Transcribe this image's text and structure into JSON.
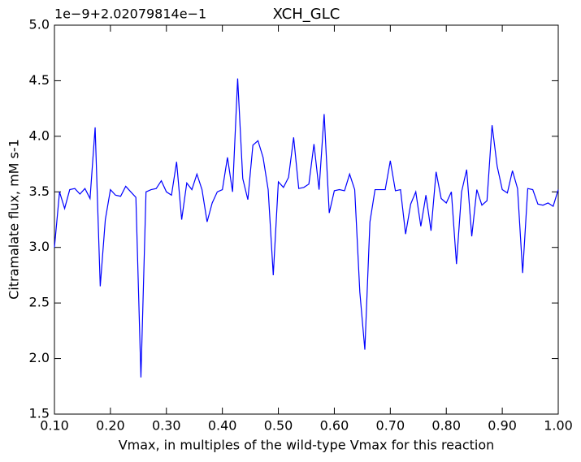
{
  "chart_data": {
    "type": "line",
    "title": "XCH_GLC",
    "offset_text": "1e−9+2.02079814e−1",
    "x_label": "Vmax, in multiples of the wild-type Vmax for this reaction",
    "y_label": "Citramalate flux, mM s-1",
    "x": [
      0.1,
      0.1091,
      0.1182,
      0.1273,
      0.1364,
      0.1455,
      0.1545,
      0.1636,
      0.1727,
      0.1818,
      0.1909,
      0.2,
      0.2091,
      0.2182,
      0.2273,
      0.2364,
      0.2455,
      0.2545,
      0.2636,
      0.2727,
      0.2818,
      0.2909,
      0.3,
      0.3091,
      0.3182,
      0.3273,
      0.3364,
      0.3455,
      0.3545,
      0.3636,
      0.3727,
      0.3818,
      0.3909,
      0.4,
      0.4091,
      0.4182,
      0.4273,
      0.4364,
      0.4455,
      0.4545,
      0.4636,
      0.4727,
      0.4818,
      0.4909,
      0.5,
      0.5091,
      0.5182,
      0.5273,
      0.5364,
      0.5455,
      0.5545,
      0.5636,
      0.5727,
      0.5818,
      0.5909,
      0.6,
      0.6091,
      0.6182,
      0.6273,
      0.6364,
      0.6455,
      0.6545,
      0.6636,
      0.6727,
      0.6818,
      0.6909,
      0.7,
      0.7091,
      0.7182,
      0.7273,
      0.7364,
      0.7455,
      0.7545,
      0.7636,
      0.7727,
      0.7818,
      0.7909,
      0.8,
      0.8091,
      0.8182,
      0.8273,
      0.8364,
      0.8455,
      0.8545,
      0.8636,
      0.8727,
      0.8818,
      0.8909,
      0.9,
      0.9091,
      0.9182,
      0.9273,
      0.9364,
      0.9455,
      0.9545,
      0.9636,
      0.9727,
      0.9818,
      0.9909,
      1.0
    ],
    "series": [
      {
        "name": "Citramalate flux",
        "color": "#0000ff",
        "values": [
          3.0,
          3.5,
          3.35,
          3.52,
          3.53,
          3.48,
          3.53,
          3.44,
          4.08,
          2.65,
          3.25,
          3.52,
          3.47,
          3.46,
          3.55,
          3.5,
          3.45,
          1.83,
          3.5,
          3.52,
          3.53,
          3.6,
          3.5,
          3.47,
          3.77,
          3.25,
          3.58,
          3.52,
          3.66,
          3.52,
          3.23,
          3.4,
          3.5,
          3.52,
          3.81,
          3.5,
          4.52,
          3.62,
          3.43,
          3.92,
          3.96,
          3.81,
          3.52,
          2.75,
          3.59,
          3.54,
          3.63,
          3.99,
          3.53,
          3.54,
          3.57,
          3.93,
          3.52,
          4.2,
          3.31,
          3.51,
          3.52,
          3.51,
          3.66,
          3.52,
          2.6,
          2.08,
          3.23,
          3.52,
          3.52,
          3.52,
          3.78,
          3.51,
          3.52,
          3.12,
          3.39,
          3.5,
          3.19,
          3.47,
          3.15,
          3.68,
          3.44,
          3.4,
          3.5,
          2.85,
          3.5,
          3.7,
          3.1,
          3.52,
          3.38,
          3.42,
          4.1,
          3.73,
          3.52,
          3.49,
          3.69,
          3.53,
          2.77,
          3.53,
          3.52,
          3.39,
          3.38,
          3.4,
          3.37,
          3.52
        ]
      }
    ],
    "xlim": [
      0.1,
      1.0
    ],
    "xticks": [
      {
        "value": 0.1,
        "label": "0.10"
      },
      {
        "value": 0.2,
        "label": "0.20"
      },
      {
        "value": 0.3,
        "label": "0.30"
      },
      {
        "value": 0.4,
        "label": "0.40"
      },
      {
        "value": 0.5,
        "label": "0.50"
      },
      {
        "value": 0.6,
        "label": "0.60"
      },
      {
        "value": 0.7,
        "label": "0.70"
      },
      {
        "value": 0.8,
        "label": "0.80"
      },
      {
        "value": 0.9,
        "label": "0.90"
      },
      {
        "value": 1.0,
        "label": "1.00"
      }
    ],
    "ylim": [
      1.5,
      5.0
    ],
    "yticks": [
      1.5,
      {
        "value": 2.0,
        "label": "2.0"
      },
      2.5,
      {
        "value": 3.0,
        "label": "3.0"
      },
      3.5,
      {
        "value": 4.0,
        "label": "4.0"
      },
      4.5,
      {
        "value": 5.0,
        "label": "5.0"
      }
    ],
    "grid": false
  }
}
